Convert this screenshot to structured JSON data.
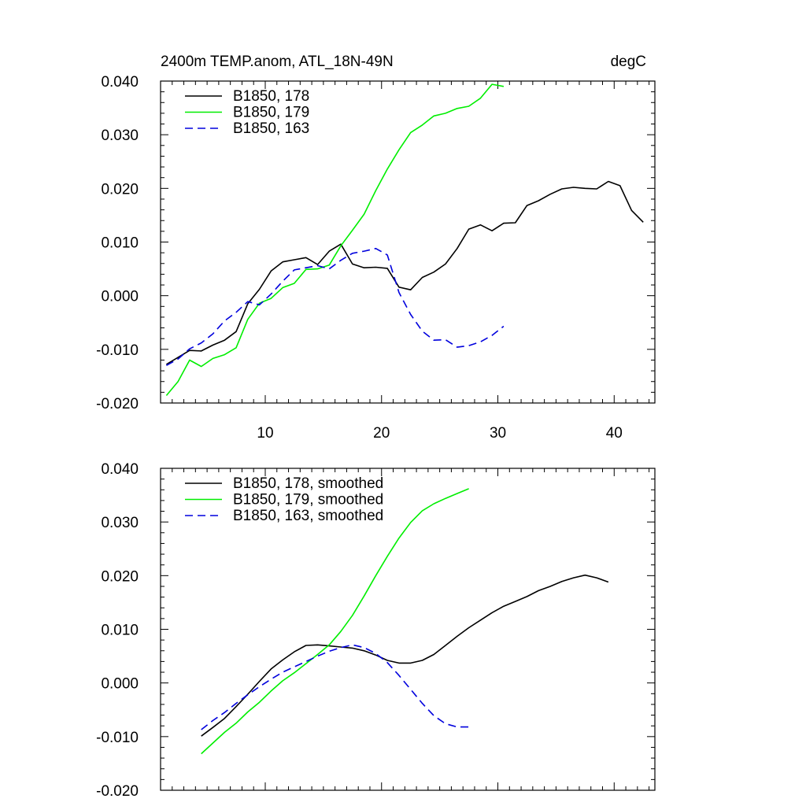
{
  "chart_data": [
    {
      "type": "line",
      "title_left": "2400m TEMP.anom, ATL_18N-49N",
      "title_right": "degC",
      "xlim": [
        1,
        43.5
      ],
      "ylim": [
        -0.02,
        0.04
      ],
      "xticks": [
        10,
        20,
        30,
        40
      ],
      "xticklabels": [
        "10",
        "20",
        "30",
        "40"
      ],
      "yticks": [
        -0.02,
        -0.01,
        0.0,
        0.01,
        0.02,
        0.03,
        0.04
      ],
      "yticklabels": [
        "-0.020",
        "-0.010",
        "0.000",
        "0.010",
        "0.020",
        "0.030",
        "0.040"
      ],
      "legend_position": "top-left",
      "series": [
        {
          "name": "B1850, 178",
          "color": "#000000",
          "dash": "solid",
          "x": [
            1.5,
            2.5,
            3.5,
            4.5,
            5.5,
            6.5,
            7.5,
            8.5,
            9.5,
            10.5,
            11.5,
            12.5,
            13.5,
            14.5,
            15.5,
            16.5,
            17.5,
            18.5,
            19.5,
            20.5,
            21.5,
            22.5,
            23.5,
            24.5,
            25.5,
            26.5,
            27.5,
            28.5,
            29.5,
            30.5,
            31.5,
            32.5,
            33.5,
            34.5,
            35.5,
            36.5,
            37.5,
            38.5,
            39.5,
            40.5,
            41.5,
            42.5
          ],
          "y": [
            -0.0128,
            -0.0115,
            -0.0102,
            -0.0103,
            -0.0092,
            -0.0083,
            -0.0067,
            -0.0015,
            0.0012,
            0.0046,
            0.0063,
            0.0067,
            0.0071,
            0.0058,
            0.0083,
            0.0096,
            0.0059,
            0.0052,
            0.0053,
            0.0051,
            0.0016,
            0.0011,
            0.0034,
            0.0044,
            0.0059,
            0.0088,
            0.0124,
            0.0132,
            0.0121,
            0.0135,
            0.0136,
            0.0168,
            0.0177,
            0.0189,
            0.0199,
            0.0202,
            0.02,
            0.0199,
            0.0213,
            0.0205,
            0.0159,
            0.0137
          ]
        },
        {
          "name": "B1850, 179",
          "color": "#00ee00",
          "dash": "solid",
          "x": [
            1.5,
            2.5,
            3.5,
            4.5,
            5.5,
            6.5,
            7.5,
            8.5,
            9.5,
            10.5,
            11.5,
            12.5,
            13.5,
            14.5,
            15.5,
            16.5,
            17.5,
            18.5,
            19.5,
            20.5,
            21.5,
            22.5,
            23.5,
            24.5,
            25.5,
            26.5,
            27.5,
            28.5,
            29.5,
            30.5
          ],
          "y": [
            -0.0186,
            -0.016,
            -0.012,
            -0.0132,
            -0.0117,
            -0.011,
            -0.0097,
            -0.0044,
            -0.0014,
            -0.0005,
            0.0015,
            0.0023,
            0.0049,
            0.005,
            0.0057,
            0.0093,
            0.0122,
            0.0152,
            0.0196,
            0.0236,
            0.0272,
            0.0304,
            0.0318,
            0.0335,
            0.034,
            0.0349,
            0.0353,
            0.0368,
            0.0394,
            0.039
          ]
        },
        {
          "name": "B1850, 163",
          "color": "#0000dd",
          "dash": "dashed",
          "x": [
            1.5,
            2.5,
            3.5,
            4.5,
            5.5,
            6.5,
            7.5,
            8.5,
            9.5,
            10.5,
            11.5,
            12.5,
            13.5,
            14.5,
            15.5,
            16.5,
            17.5,
            18.5,
            19.5,
            20.5,
            21.5,
            22.5,
            23.5,
            24.5,
            25.5,
            26.5,
            27.5,
            28.5,
            29.5,
            30.5
          ],
          "y": [
            -0.013,
            -0.0118,
            -0.0099,
            -0.0088,
            -0.0071,
            -0.0047,
            -0.0031,
            -0.0011,
            -0.0017,
            0.0003,
            0.0027,
            0.0048,
            0.0052,
            0.0056,
            0.005,
            0.0066,
            0.0079,
            0.0083,
            0.0088,
            0.0076,
            0.0006,
            -0.0035,
            -0.0066,
            -0.0083,
            -0.0082,
            -0.0096,
            -0.0093,
            -0.0086,
            -0.0074,
            -0.0057
          ]
        }
      ]
    },
    {
      "type": "line",
      "xlim": [
        1,
        43.5
      ],
      "ylim": [
        -0.02,
        0.04
      ],
      "xticks": [
        10,
        20,
        30,
        40
      ],
      "yticks": [
        -0.02,
        -0.01,
        0.0,
        0.01,
        0.02,
        0.03,
        0.04
      ],
      "yticklabels": [
        "-0.020",
        "-0.010",
        "0.000",
        "0.010",
        "0.020",
        "0.030",
        "0.040"
      ],
      "legend_position": "top-left",
      "series": [
        {
          "name": "B1850, 178, smoothed",
          "color": "#000000",
          "dash": "solid",
          "x": [
            4.5,
            5.5,
            6.5,
            7.5,
            8.5,
            9.5,
            10.5,
            11.5,
            12.5,
            13.5,
            14.5,
            15.5,
            16.5,
            17.5,
            18.5,
            19.5,
            20.5,
            21.5,
            22.5,
            23.5,
            24.5,
            25.5,
            26.5,
            27.5,
            28.5,
            29.5,
            30.5,
            31.5,
            32.5,
            33.5,
            34.5,
            35.5,
            36.5,
            37.5,
            38.5,
            39.5
          ],
          "y": [
            -0.0099,
            -0.0083,
            -0.0066,
            -0.0044,
            -0.0021,
            0.0003,
            0.0026,
            0.0043,
            0.0058,
            0.007,
            0.0071,
            0.0069,
            0.0067,
            0.0065,
            0.006,
            0.0052,
            0.0042,
            0.0037,
            0.0037,
            0.0042,
            0.0053,
            0.007,
            0.0087,
            0.0103,
            0.0117,
            0.0131,
            0.0143,
            0.0152,
            0.0161,
            0.0172,
            0.018,
            0.0189,
            0.0196,
            0.0201,
            0.0196,
            0.0188
          ]
        },
        {
          "name": "B1850, 179, smoothed",
          "color": "#00ee00",
          "dash": "solid",
          "x": [
            4.5,
            5.5,
            6.5,
            7.5,
            8.5,
            9.5,
            10.5,
            11.5,
            12.5,
            13.5,
            14.5,
            15.5,
            16.5,
            17.5,
            18.5,
            19.5,
            20.5,
            21.5,
            22.5,
            23.5,
            24.5,
            25.5,
            26.5,
            27.5
          ],
          "y": [
            -0.0132,
            -0.0112,
            -0.0092,
            -0.0075,
            -0.0054,
            -0.0036,
            -0.0015,
            0.0004,
            0.0019,
            0.0036,
            0.0053,
            0.0071,
            0.0096,
            0.0126,
            0.0162,
            0.02,
            0.0236,
            0.027,
            0.0299,
            0.0321,
            0.0334,
            0.0344,
            0.0353,
            0.0362
          ]
        },
        {
          "name": "B1850, 163, smoothed",
          "color": "#0000dd",
          "dash": "dashed",
          "x": [
            4.5,
            5.5,
            6.5,
            7.5,
            8.5,
            9.5,
            10.5,
            11.5,
            12.5,
            13.5,
            14.5,
            15.5,
            16.5,
            17.5,
            18.5,
            19.5,
            20.5,
            21.5,
            22.5,
            23.5,
            24.5,
            25.5,
            26.5,
            27.5
          ],
          "y": [
            -0.0087,
            -0.007,
            -0.0055,
            -0.0038,
            -0.0022,
            -0.0007,
            0.0007,
            0.002,
            0.003,
            0.004,
            0.005,
            0.0059,
            0.0066,
            0.0071,
            0.0066,
            0.0055,
            0.0038,
            0.0014,
            -0.0012,
            -0.0038,
            -0.0061,
            -0.0076,
            -0.0082,
            -0.0082
          ]
        }
      ]
    }
  ]
}
